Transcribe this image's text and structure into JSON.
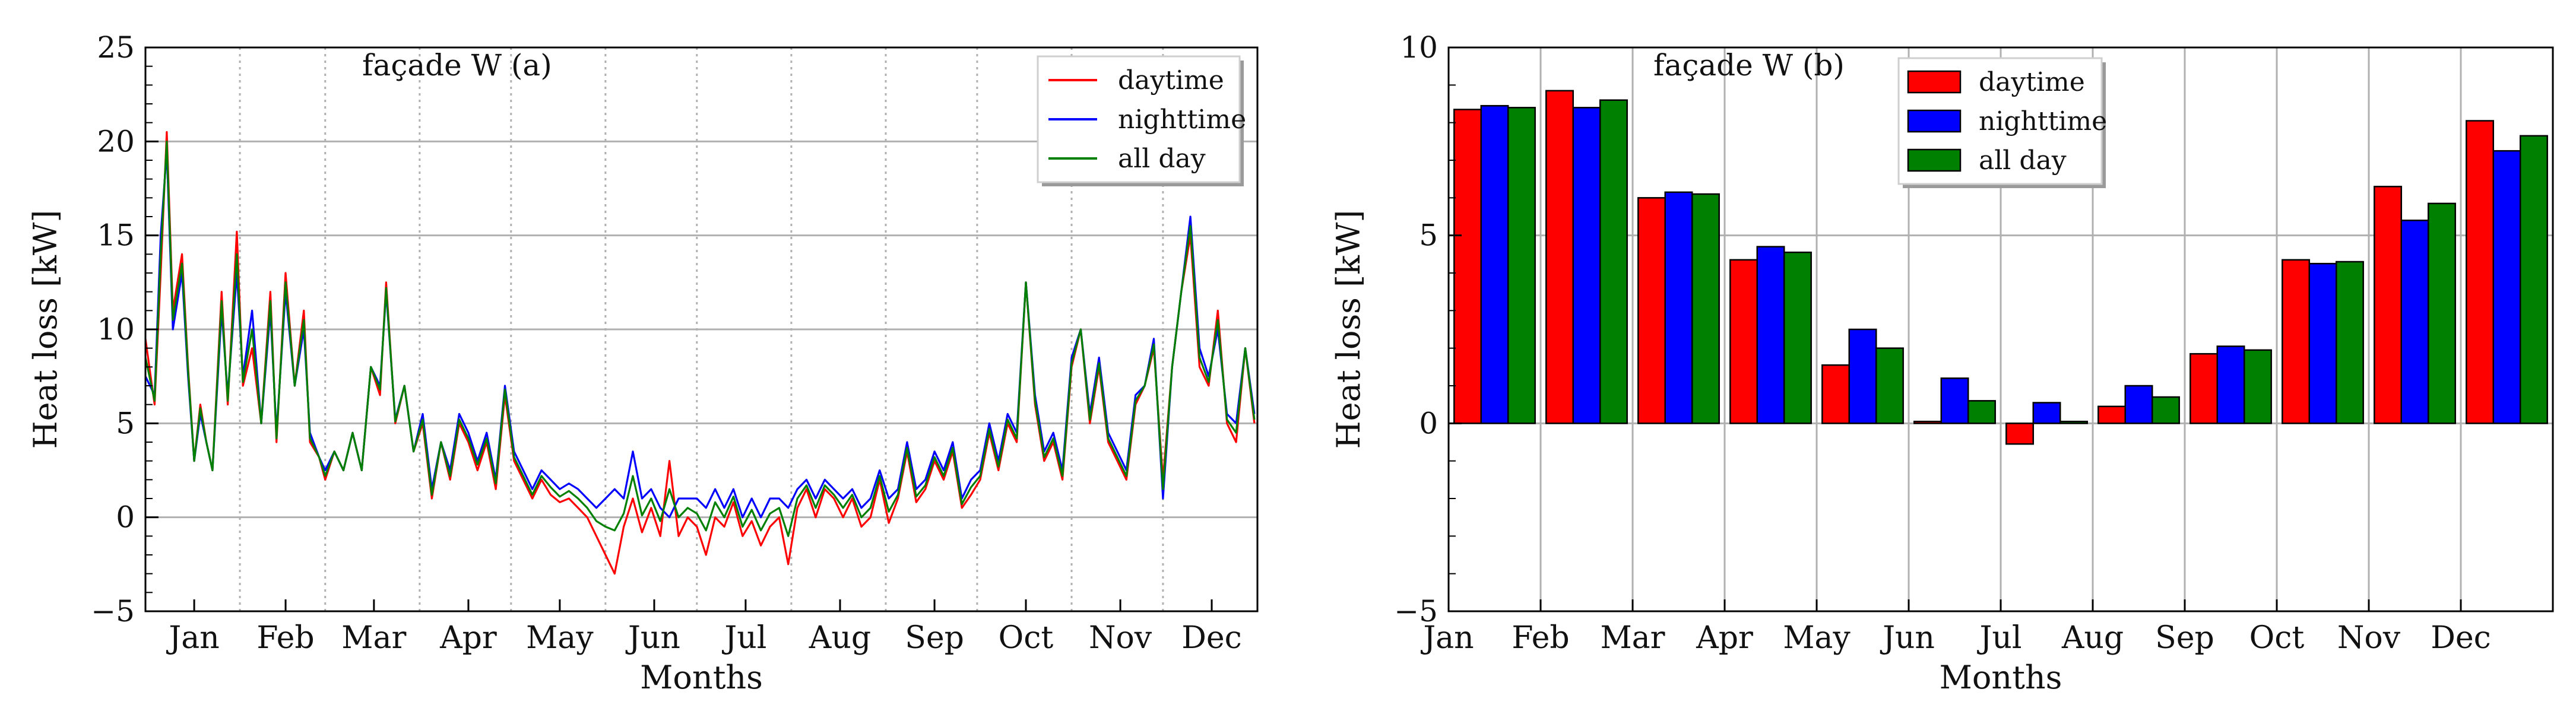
{
  "colors": {
    "daytime": "#ff0000",
    "nighttime": "#0000ff",
    "allday": "#008000",
    "grid": "#b0b0b0",
    "axis": "#000000"
  },
  "chart_data": [
    {
      "type": "line",
      "title": "façade W (a)",
      "xlabel": "Months",
      "ylabel": "Heat loss [kW]",
      "ylim": [
        -5,
        25
      ],
      "yticks": [
        -5,
        0,
        5,
        10,
        15,
        20,
        25
      ],
      "xlim": [
        0,
        365
      ],
      "x_tick_days": [
        16,
        46,
        75,
        106,
        136,
        167,
        197,
        228,
        259,
        289,
        320,
        350
      ],
      "x_tick_labels": [
        "Jan",
        "Feb",
        "Mar",
        "Apr",
        "May",
        "Jun",
        "Jul",
        "Aug",
        "Sep",
        "Oct",
        "Nov",
        "Dec"
      ],
      "vertical_dotted_lines_days": [
        31,
        59,
        90,
        120,
        151,
        181,
        212,
        243,
        273,
        304,
        334
      ],
      "legend": [
        "daytime",
        "nighttime",
        "all day"
      ],
      "legend_position": "top-right",
      "series": [
        {
          "name": "daytime",
          "key": "daytime"
        },
        {
          "name": "nighttime",
          "key": "nighttime"
        },
        {
          "name": "all day",
          "key": "allday"
        }
      ],
      "x": [
        0,
        3,
        5,
        7,
        9,
        12,
        14,
        16,
        18,
        20,
        22,
        25,
        27,
        30,
        32,
        35,
        38,
        41,
        43,
        46,
        49,
        52,
        54,
        57,
        59,
        62,
        65,
        68,
        71,
        74,
        77,
        79,
        82,
        85,
        88,
        91,
        94,
        97,
        100,
        103,
        106,
        109,
        112,
        115,
        118,
        121,
        124,
        127,
        130,
        133,
        136,
        139,
        142,
        145,
        148,
        151,
        154,
        157,
        160,
        163,
        166,
        169,
        172,
        175,
        178,
        181,
        184,
        187,
        190,
        193,
        196,
        199,
        202,
        205,
        208,
        211,
        214,
        217,
        220,
        223,
        226,
        229,
        232,
        235,
        238,
        241,
        244,
        247,
        250,
        253,
        256,
        259,
        262,
        265,
        268,
        271,
        274,
        277,
        280,
        283,
        286,
        289,
        292,
        295,
        298,
        301,
        304,
        307,
        310,
        313,
        316,
        319,
        322,
        325,
        328,
        331,
        334,
        337,
        340,
        343,
        346,
        349,
        352,
        355,
        358,
        361,
        364
      ],
      "daytime": [
        9.5,
        6,
        13,
        20.5,
        11,
        14,
        8,
        3,
        6,
        4,
        2.5,
        12,
        6,
        15.2,
        7,
        9,
        5,
        12,
        4,
        13,
        7,
        11,
        4,
        3.2,
        2,
        3.5,
        2.5,
        4.5,
        2.5,
        8,
        6.5,
        12.5,
        5,
        7,
        3.5,
        5,
        1,
        4,
        2,
        5,
        4,
        2.5,
        4,
        1.5,
        6.5,
        3,
        2,
        1,
        2,
        1.2,
        0.8,
        1,
        0.5,
        0,
        -1,
        -2,
        -3,
        -0.5,
        1,
        -0.8,
        0.5,
        -1,
        3,
        -1,
        0,
        -0.5,
        -2,
        0,
        -0.5,
        0.8,
        -1,
        -0.2,
        -1.5,
        -0.5,
        0,
        -2.5,
        0.5,
        1.5,
        0,
        1.5,
        1,
        0,
        1,
        -0.5,
        0,
        2,
        -0.3,
        1,
        3.5,
        0.8,
        1.5,
        3,
        2,
        3.5,
        0.5,
        1.2,
        2,
        4.5,
        2.5,
        5,
        4,
        12.5,
        6,
        3,
        4,
        2,
        8,
        10,
        5,
        8,
        4,
        3,
        2,
        6,
        7,
        9,
        2,
        8,
        12,
        15,
        8,
        7,
        11,
        5,
        4,
        9,
        5
      ],
      "nighttime": [
        7.5,
        6.5,
        15,
        19.5,
        10,
        13,
        7.5,
        3,
        5.5,
        4,
        2.5,
        11,
        6.5,
        13,
        7.5,
        11,
        5,
        11,
        4.5,
        12,
        7,
        10,
        4.5,
        3.2,
        2.5,
        3.5,
        2.5,
        4.5,
        2.5,
        8,
        7,
        12,
        5.2,
        7,
        3.5,
        5.5,
        1.5,
        4,
        2.5,
        5.5,
        4.5,
        3,
        4.5,
        2,
        7,
        3.5,
        2.5,
        1.5,
        2.5,
        2,
        1.5,
        1.8,
        1.5,
        1,
        0.5,
        1,
        1.5,
        1,
        3.5,
        1,
        1.5,
        0.5,
        0,
        1,
        1,
        1,
        0.5,
        1.5,
        0.5,
        1.5,
        0,
        1,
        0,
        1,
        1,
        0.5,
        1.5,
        2,
        1,
        2,
        1.5,
        1,
        1.5,
        0.5,
        1,
        2.5,
        1,
        1.5,
        4,
        1.5,
        2,
        3.5,
        2.5,
        4,
        1,
        2,
        2.5,
        5,
        3,
        5.5,
        4.5,
        12.5,
        6.5,
        3.5,
        4.5,
        2.5,
        8.5,
        10,
        5.5,
        8.5,
        4.5,
        3.5,
        2.5,
        6.5,
        7,
        9.5,
        1,
        8,
        12,
        16,
        9,
        7.5,
        10,
        5.5,
        5,
        9,
        5.5
      ],
      "allday": [
        8.5,
        6.2,
        14,
        20,
        10.5,
        13.5,
        7.8,
        3,
        5.8,
        4,
        2.5,
        11.5,
        6.2,
        14,
        7.2,
        10,
        5,
        11.5,
        4.2,
        12.5,
        7,
        10.5,
        4.2,
        3.2,
        2.2,
        3.5,
        2.5,
        4.5,
        2.5,
        8,
        6.8,
        12.2,
        5.1,
        7,
        3.5,
        5.2,
        1.2,
        4,
        2.2,
        5.2,
        4.2,
        2.8,
        4.2,
        1.8,
        6.8,
        3.2,
        2.2,
        1.2,
        2.2,
        1.6,
        1.1,
        1.4,
        1,
        0.5,
        -0.2,
        -0.5,
        -0.7,
        0.2,
        2.2,
        0.1,
        1,
        -0.2,
        1.5,
        0,
        0.5,
        0.2,
        -0.7,
        0.8,
        0,
        1.1,
        -0.5,
        0.4,
        -0.7,
        0.2,
        0.5,
        -1,
        1,
        1.7,
        0.5,
        1.7,
        1.2,
        0.5,
        1.2,
        0,
        0.5,
        2.2,
        0.3,
        1.2,
        3.7,
        1.1,
        1.7,
        3.2,
        2.2,
        3.7,
        0.7,
        1.6,
        2.2,
        4.7,
        2.7,
        5.2,
        4.2,
        12.5,
        6.2,
        3.2,
        4.2,
        2.2,
        8.2,
        10,
        5.2,
        8.2,
        4.2,
        3.2,
        2.2,
        6.2,
        7,
        9.2,
        1.5,
        8,
        12,
        15.5,
        8.5,
        7.2,
        10.5,
        5.2,
        4.5,
        9,
        5.2
      ]
    },
    {
      "type": "bar",
      "title": "façade W (b)",
      "xlabel": "Months",
      "ylabel": "Heat loss [kW]",
      "ylim": [
        -5,
        10
      ],
      "yticks": [
        -5,
        0,
        5,
        10
      ],
      "categories": [
        "Jan",
        "Feb",
        "Mar",
        "Apr",
        "May",
        "Jun",
        "Jul",
        "Aug",
        "Sep",
        "Oct",
        "Nov",
        "Dec"
      ],
      "legend": [
        "daytime",
        "nighttime",
        "all day"
      ],
      "legend_position": "top-center",
      "series": [
        {
          "name": "daytime",
          "key": "daytime",
          "values": [
            8.35,
            8.85,
            6.0,
            4.35,
            1.55,
            0.05,
            -0.55,
            0.45,
            1.85,
            4.35,
            6.3,
            8.05
          ]
        },
        {
          "name": "nighttime",
          "key": "nighttime",
          "values": [
            8.45,
            8.4,
            6.15,
            4.7,
            2.5,
            1.2,
            0.55,
            1.0,
            2.05,
            4.25,
            5.4,
            7.25
          ]
        },
        {
          "name": "all day",
          "key": "allday",
          "values": [
            8.4,
            8.6,
            6.1,
            4.55,
            2.0,
            0.6,
            0.05,
            0.7,
            1.95,
            4.3,
            5.85,
            7.65
          ]
        }
      ]
    }
  ]
}
